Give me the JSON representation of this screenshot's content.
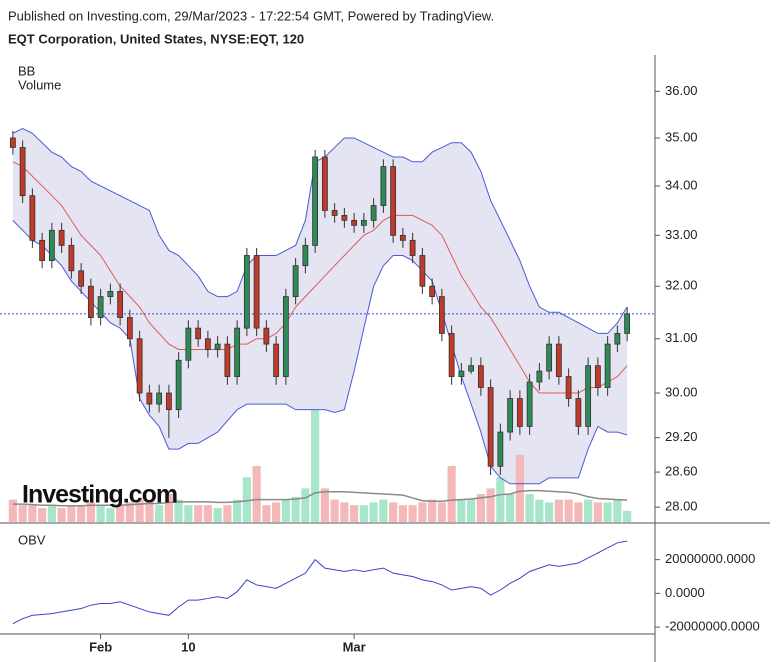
{
  "chart_data": [
    {
      "type": "candlestick",
      "header": "Published on Investing.com, 29/Mar/2023 - 17:22:54 GMT, Powered by TradingView.",
      "title": "EQT Corporation, United States, NYSE:EQT, 120",
      "indicator_labels": [
        "BB",
        "Volume"
      ],
      "logo": "Investing.com",
      "categories": [
        null,
        null,
        null,
        null,
        null,
        null,
        null,
        null,
        null,
        "Feb",
        null,
        null,
        null,
        null,
        null,
        null,
        null,
        null,
        "10",
        null,
        null,
        null,
        null,
        null,
        null,
        null,
        null,
        null,
        null,
        null,
        null,
        null,
        null,
        null,
        null,
        "Mar",
        null,
        null,
        null,
        null,
        null,
        null,
        null,
        null,
        null,
        null,
        null,
        null,
        null,
        null,
        null,
        null,
        null,
        null,
        null,
        null,
        null,
        null,
        null,
        null,
        null,
        null,
        null,
        null
      ],
      "open": [
        35.0,
        34.8,
        33.8,
        32.9,
        32.5,
        33.1,
        32.8,
        32.3,
        32.0,
        31.4,
        31.8,
        31.9,
        31.4,
        31.0,
        30.0,
        29.8,
        30.0,
        29.7,
        30.6,
        31.2,
        31.0,
        30.8,
        30.9,
        30.3,
        31.2,
        32.6,
        31.2,
        30.9,
        30.3,
        31.8,
        32.4,
        32.8,
        34.6,
        33.5,
        33.4,
        33.3,
        33.2,
        33.3,
        33.6,
        34.4,
        33.0,
        32.9,
        32.6,
        32.0,
        31.8,
        31.1,
        30.3,
        30.4,
        30.5,
        30.1,
        28.7,
        29.3,
        29.9,
        29.4,
        30.2,
        30.4,
        30.9,
        30.3,
        29.9,
        29.4,
        30.5,
        30.1,
        30.9,
        31.1
      ],
      "high": [
        35.15,
        34.95,
        33.95,
        33.05,
        33.25,
        33.25,
        32.95,
        32.45,
        32.15,
        31.95,
        32.05,
        32.05,
        31.55,
        31.15,
        30.15,
        30.15,
        30.15,
        30.75,
        31.35,
        31.35,
        31.15,
        31.05,
        31.05,
        31.35,
        32.75,
        32.75,
        31.35,
        31.05,
        31.95,
        32.55,
        32.95,
        34.75,
        34.75,
        33.65,
        33.55,
        33.45,
        33.45,
        33.75,
        34.55,
        34.55,
        33.15,
        33.05,
        32.75,
        32.15,
        31.95,
        31.25,
        30.55,
        30.65,
        30.65,
        30.25,
        29.45,
        30.05,
        30.05,
        30.35,
        30.55,
        31.05,
        31.05,
        30.45,
        30.05,
        30.65,
        30.65,
        31.05,
        31.25,
        31.6
      ],
      "low": [
        34.65,
        33.65,
        32.75,
        32.35,
        32.35,
        32.65,
        32.15,
        31.85,
        31.25,
        31.25,
        31.65,
        31.25,
        30.85,
        29.85,
        29.65,
        29.65,
        29.2,
        29.55,
        30.45,
        30.85,
        30.65,
        30.65,
        30.15,
        30.15,
        31.05,
        31.05,
        30.75,
        30.15,
        30.15,
        31.65,
        32.25,
        32.65,
        33.35,
        33.25,
        33.15,
        33.05,
        33.05,
        33.15,
        33.45,
        32.85,
        32.75,
        32.45,
        31.85,
        31.65,
        30.95,
        30.15,
        30.15,
        30.35,
        29.95,
        28.55,
        28.55,
        29.15,
        29.25,
        29.25,
        30.05,
        30.25,
        30.15,
        29.75,
        29.25,
        29.25,
        29.95,
        29.95,
        30.75,
        30.95
      ],
      "close": [
        34.8,
        33.8,
        32.9,
        32.5,
        33.1,
        32.8,
        32.3,
        32.0,
        31.4,
        31.8,
        31.9,
        31.4,
        31.0,
        30.0,
        29.8,
        30.0,
        29.7,
        30.6,
        31.2,
        31.0,
        30.8,
        30.9,
        30.3,
        31.2,
        32.6,
        31.2,
        30.9,
        30.3,
        31.8,
        32.4,
        32.8,
        34.6,
        33.5,
        33.4,
        33.3,
        33.2,
        33.3,
        33.6,
        34.4,
        33.0,
        32.9,
        32.6,
        32.0,
        31.8,
        31.1,
        30.3,
        30.4,
        30.5,
        30.1,
        28.7,
        29.3,
        29.9,
        29.4,
        30.2,
        30.4,
        30.9,
        30.3,
        29.9,
        29.4,
        30.5,
        30.1,
        30.9,
        31.1,
        31.47
      ],
      "bb_upper": [
        35.1,
        35.2,
        35.1,
        34.9,
        34.7,
        34.6,
        34.4,
        34.3,
        34.1,
        34.0,
        33.9,
        33.8,
        33.7,
        33.6,
        33.5,
        33.0,
        32.7,
        32.6,
        32.4,
        32.2,
        31.9,
        31.8,
        31.8,
        31.9,
        32.4,
        32.6,
        32.6,
        32.6,
        32.7,
        32.8,
        33.3,
        34.5,
        34.6,
        34.8,
        35.0,
        35.0,
        34.9,
        34.8,
        34.7,
        34.6,
        34.6,
        34.5,
        34.5,
        34.7,
        34.8,
        34.9,
        34.9,
        34.7,
        34.3,
        33.7,
        33.3,
        32.9,
        32.5,
        32.0,
        31.6,
        31.5,
        31.5,
        31.4,
        31.3,
        31.2,
        31.1,
        31.1,
        31.3,
        31.6
      ],
      "bb_middle": [
        34.5,
        34.4,
        34.2,
        34.0,
        33.8,
        33.6,
        33.3,
        33.0,
        32.8,
        32.6,
        32.3,
        32.0,
        31.8,
        31.6,
        31.3,
        31.1,
        30.9,
        30.8,
        30.8,
        30.8,
        30.8,
        30.8,
        30.8,
        30.9,
        30.9,
        31.0,
        31.0,
        31.1,
        31.3,
        31.6,
        31.8,
        32.0,
        32.2,
        32.4,
        32.6,
        32.8,
        33.0,
        33.1,
        33.3,
        33.4,
        33.4,
        33.4,
        33.3,
        33.2,
        33.0,
        32.6,
        32.2,
        31.9,
        31.6,
        31.4,
        31.1,
        30.8,
        30.5,
        30.2,
        30.0,
        30.0,
        30.0,
        30.0,
        30.0,
        30.1,
        30.1,
        30.2,
        30.3,
        30.5
      ],
      "bb_lower": [
        33.3,
        33.1,
        32.9,
        32.8,
        32.6,
        32.4,
        32.1,
        31.9,
        31.7,
        31.5,
        31.3,
        31.2,
        31.0,
        29.9,
        29.6,
        29.4,
        29.0,
        29.0,
        29.1,
        29.1,
        29.2,
        29.3,
        29.5,
        29.7,
        29.8,
        29.8,
        29.8,
        29.8,
        29.8,
        29.7,
        29.7,
        29.7,
        29.7,
        29.65,
        29.7,
        30.4,
        31.2,
        32.0,
        32.4,
        32.6,
        32.6,
        32.5,
        32.3,
        32.1,
        31.5,
        30.9,
        30.3,
        29.8,
        29.3,
        28.7,
        28.5,
        28.4,
        28.4,
        28.4,
        28.4,
        28.5,
        28.5,
        28.5,
        28.5,
        29.0,
        29.4,
        29.3,
        29.3,
        29.25
      ],
      "volume": [
        4,
        3,
        3,
        2.5,
        3,
        2.5,
        3,
        3,
        3.5,
        3,
        2.5,
        3,
        3.5,
        4,
        4,
        3,
        5,
        4,
        3,
        3,
        3,
        2.5,
        3,
        4,
        8,
        10,
        3,
        3.5,
        4,
        4.5,
        6,
        20,
        6,
        4,
        3.5,
        3,
        3,
        3.5,
        4,
        3.5,
        3,
        3,
        3.5,
        4,
        3.5,
        10,
        4,
        4,
        5,
        6,
        8,
        5,
        12,
        5,
        4,
        3.5,
        4,
        4,
        3.5,
        4,
        3.5,
        3.5,
        4,
        2
      ],
      "volume_ma": [
        3.2,
        3.2,
        3.1,
        3.0,
        3.0,
        2.9,
        2.9,
        2.9,
        3.0,
        3.0,
        3.0,
        3.0,
        3.1,
        3.2,
        3.3,
        3.3,
        3.5,
        3.6,
        3.6,
        3.6,
        3.6,
        3.5,
        3.5,
        3.6,
        3.8,
        4.0,
        4.0,
        4.0,
        4.0,
        4.1,
        4.3,
        5.2,
        5.4,
        5.4,
        5.4,
        5.3,
        5.2,
        5.1,
        5.0,
        4.9,
        4.8,
        4.3,
        3.8,
        3.7,
        3.7,
        3.9,
        4.0,
        4.1,
        4.3,
        4.5,
        4.9,
        5.0,
        5.5,
        5.6,
        5.6,
        5.5,
        5.4,
        5.3,
        5.0,
        4.5,
        4.2,
        4.1,
        4.0,
        3.9
      ],
      "last_price": 31.47,
      "ylim": [
        27.75,
        36.8
      ],
      "log_scale": true,
      "yticks": [
        {
          "value": 36,
          "label": "36.00"
        },
        {
          "value": 35,
          "label": "35.00"
        },
        {
          "value": 34,
          "label": "34.00"
        },
        {
          "value": 33,
          "label": "33.00"
        },
        {
          "value": 32,
          "label": "32.00"
        },
        {
          "value": 31,
          "label": "31.00"
        },
        {
          "value": 30,
          "label": "30.00"
        },
        {
          "value": 29.2,
          "label": "29.20"
        },
        {
          "value": 28.6,
          "label": "28.60"
        },
        {
          "value": 28,
          "label": "28.00"
        }
      ],
      "up_color": "#2e8b57",
      "down_color": "#c0392b",
      "volume_up_color": "#a8e6cc",
      "volume_down_color": "#f5b8b8",
      "volume_ma_color": "#8a8a8a",
      "band_color": "#4a5ad8",
      "band_fill": "#e4e4f2",
      "middle_color": "#e05a5a",
      "last_price_color": "#3a4bd0"
    },
    {
      "type": "line",
      "title": "OBV",
      "values": [
        -18000000,
        -15000000,
        -13000000,
        -12500000,
        -12000000,
        -11000000,
        -10000000,
        -9000000,
        -7000000,
        -6000000,
        -6000000,
        -5000000,
        -7000000,
        -9000000,
        -11000000,
        -12000000,
        -13000000,
        -8000000,
        -4000000,
        -4000000,
        -3000000,
        -2000000,
        -3000000,
        1000000,
        8000000,
        5000000,
        4000000,
        3000000,
        6000000,
        9000000,
        12000000,
        20000000,
        15000000,
        14000000,
        13000000,
        14000000,
        13000000,
        14000000,
        15000000,
        12000000,
        11000000,
        10000000,
        8000000,
        7000000,
        5000000,
        2000000,
        3000000,
        4000000,
        3000000,
        -1000000,
        2000000,
        6000000,
        9000000,
        13000000,
        15000000,
        17000000,
        16000000,
        17000000,
        18000000,
        21000000,
        24000000,
        27000000,
        30000000,
        31000000
      ],
      "ylim": [
        -24100000,
        37600000
      ],
      "yticks": [
        {
          "value": 20000000,
          "label": "20000000.0000"
        },
        {
          "value": 0,
          "label": "0.0000"
        },
        {
          "value": -20000000,
          "label": "-20000000.0000"
        }
      ],
      "color": "#3b44c4"
    }
  ]
}
